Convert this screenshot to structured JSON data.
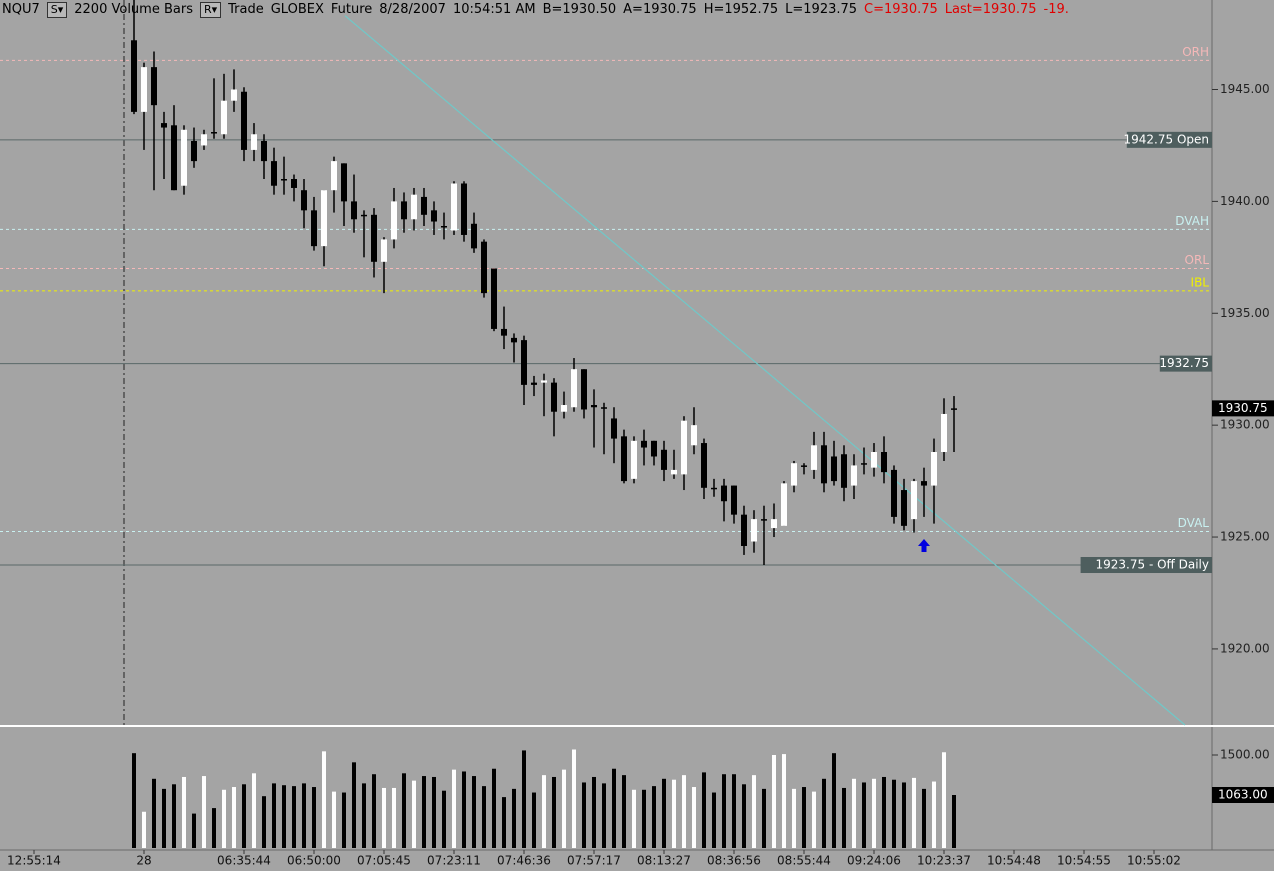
{
  "header": {
    "items": [
      {
        "text": "NQU7",
        "color": "#000000"
      },
      {
        "text": "S▾",
        "color": "#000000",
        "button": true
      },
      {
        "text": "2200 Volume Bars",
        "color": "#000000"
      },
      {
        "text": "R▾",
        "color": "#000000",
        "button": true
      },
      {
        "text": "Trade",
        "color": "#000000"
      },
      {
        "text": "GLOBEX",
        "color": "#000000"
      },
      {
        "text": "Future",
        "color": "#000000"
      },
      {
        "text": "8/28/2007",
        "color": "#000000"
      },
      {
        "text": "10:54:51 AM",
        "color": "#000000"
      },
      {
        "text": "B=1930.50",
        "color": "#000000"
      },
      {
        "text": "A=1930.75",
        "color": "#000000"
      },
      {
        "text": "H=1952.75",
        "color": "#000000"
      },
      {
        "text": "L=1923.75",
        "color": "#000000"
      },
      {
        "text": "C=1930.75",
        "color": "#e00000"
      },
      {
        "text": "Last=1930.75",
        "color": "#e00000"
      },
      {
        "text": "-19.",
        "color": "#e00000"
      }
    ]
  },
  "chart_data": [
    {
      "type": "candlestick",
      "up_color": "#ffffff",
      "down_color": "#000000",
      "xlim": [
        -13.4,
        107.8
      ],
      "ylim": [
        1916.6,
        1949
      ],
      "yticks": [
        {
          "value": 1920,
          "label": "1920.00"
        },
        {
          "value": 1925,
          "label": "1925.00"
        },
        {
          "value": 1930,
          "label": "1930.00"
        },
        {
          "value": 1935,
          "label": "1935.00"
        },
        {
          "value": 1940,
          "label": "1940.00"
        },
        {
          "value": 1945,
          "label": "1945.00"
        }
      ],
      "xticks": [
        {
          "value": -10,
          "label": "12:55:14"
        },
        {
          "value": 1,
          "label": "28"
        },
        {
          "value": 11,
          "label": "06:35:44"
        },
        {
          "value": 18,
          "label": "06:50:00"
        },
        {
          "value": 25,
          "label": "07:05:45"
        },
        {
          "value": 32,
          "label": "07:23:11"
        },
        {
          "value": 39,
          "label": "07:46:36"
        },
        {
          "value": 46,
          "label": "07:57:17"
        },
        {
          "value": 53,
          "label": "08:13:27"
        },
        {
          "value": 60,
          "label": "08:36:56"
        },
        {
          "value": 67,
          "label": "08:55:44"
        },
        {
          "value": 74,
          "label": "09:24:06"
        },
        {
          "value": 81,
          "label": "10:23:37"
        },
        {
          "value": 88,
          "label": "10:54:48"
        },
        {
          "value": 95,
          "label": "10:54:55"
        },
        {
          "value": 102,
          "label": "10:55:02"
        }
      ],
      "open": [
        1947.2,
        1944,
        1946,
        1943.5,
        1943.4,
        1940.7,
        1942.7,
        1942.5,
        1943.1,
        1943,
        1944.5,
        1944.9,
        1942.3,
        1942.7,
        1941.8,
        1941,
        1941,
        1940.5,
        1939.6,
        1938,
        1940.5,
        1941.7,
        1940,
        1939.4,
        1939.4,
        1937.3,
        1938.3,
        1940,
        1939.2,
        1940.2,
        1939.6,
        1938.9,
        1938.7,
        1940.8,
        1939,
        1938.2,
        1937,
        1934.3,
        1933.9,
        1933.8,
        1931.9,
        1931.9,
        1931.9,
        1930.6,
        1930.8,
        1932.5,
        1930.9,
        1930.8,
        1930.3,
        1929.5,
        1927.6,
        1929.3,
        1929.3,
        1928.9,
        1927.8,
        1927.8,
        1929.1,
        1929.2,
        1927.2,
        1927.3,
        1927.3,
        1926,
        1924.8,
        1925.8,
        1925.4,
        1925.5,
        1927.3,
        1928.2,
        1928,
        1929.1,
        1928.6,
        1928.7,
        1927.3,
        1928.3,
        1928.1,
        1928.8,
        1928,
        1927.1,
        1925.8,
        1927.5,
        1927.3,
        1928.8,
        1930.75
      ],
      "high": [
        1949,
        1946.2,
        1946.7,
        1944,
        1944.3,
        1943.4,
        1943.3,
        1943.2,
        1945.5,
        1945.7,
        1945.9,
        1945.1,
        1943.5,
        1943,
        1942.4,
        1942,
        1941.2,
        1941,
        1940.2,
        1940.5,
        1942,
        1941.7,
        1941.2,
        1939.6,
        1939.7,
        1938.4,
        1940.6,
        1940.4,
        1940.6,
        1940.6,
        1940,
        1939.5,
        1940.9,
        1940.9,
        1939.5,
        1938.3,
        1937,
        1935.3,
        1934.1,
        1934,
        1932.2,
        1932.3,
        1932.1,
        1931.5,
        1933,
        1932.5,
        1931.6,
        1931,
        1930.8,
        1929.8,
        1929.5,
        1929.8,
        1929.3,
        1929.3,
        1928.9,
        1930.4,
        1930.8,
        1929.4,
        1927.6,
        1927.6,
        1927.3,
        1926.4,
        1926.2,
        1926.4,
        1926.5,
        1927.5,
        1928.4,
        1928.3,
        1929.7,
        1929.7,
        1929.3,
        1929.1,
        1928.7,
        1929,
        1929.2,
        1929.5,
        1928.2,
        1927.6,
        1927.6,
        1928.1,
        1929.4,
        1931.2,
        1931.3
      ],
      "low": [
        1943.9,
        1942.3,
        1940.5,
        1941,
        1940.5,
        1940.3,
        1941.5,
        1942.3,
        1942.8,
        1942.8,
        1944,
        1941.8,
        1941.8,
        1941,
        1940.3,
        1940.3,
        1940,
        1938.8,
        1937.8,
        1937.1,
        1939.5,
        1938.9,
        1938.6,
        1937.5,
        1936.6,
        1935.9,
        1937.9,
        1938.6,
        1938.7,
        1938.9,
        1938.5,
        1938.3,
        1938.5,
        1938.2,
        1937.7,
        1935.7,
        1934.2,
        1933.4,
        1932.8,
        1930.9,
        1931.3,
        1930.4,
        1929.5,
        1930.3,
        1930.6,
        1930.3,
        1929,
        1928.7,
        1928.3,
        1927.4,
        1927.4,
        1928.2,
        1928.2,
        1927.5,
        1927.6,
        1927.1,
        1928.7,
        1926.7,
        1926.8,
        1925.7,
        1925.6,
        1924.2,
        1924.3,
        1923.75,
        1925,
        1925.5,
        1927,
        1927.8,
        1927.6,
        1927,
        1927.3,
        1926.6,
        1926.7,
        1927.8,
        1927.7,
        1927.4,
        1925.6,
        1925.3,
        1925.2,
        1925.9,
        1925.6,
        1928.4,
        1928.8
      ],
      "close": [
        1944,
        1946,
        1944.3,
        1943.3,
        1940.5,
        1943.2,
        1941.8,
        1943,
        1943.1,
        1944.5,
        1945,
        1942.3,
        1943,
        1941.8,
        1940.7,
        1941,
        1940.6,
        1939.6,
        1938,
        1940.5,
        1941.8,
        1940,
        1939.2,
        1939.4,
        1937.3,
        1938.3,
        1940,
        1939.2,
        1940.3,
        1939.4,
        1939.1,
        1938.9,
        1940.8,
        1938.5,
        1937.9,
        1935.9,
        1934.3,
        1934,
        1933.7,
        1931.8,
        1931.8,
        1932,
        1930.6,
        1930.9,
        1932.5,
        1930.7,
        1930.8,
        1930.8,
        1929.4,
        1927.5,
        1929.3,
        1929,
        1928.6,
        1928,
        1928,
        1930.2,
        1930,
        1927.2,
        1927.2,
        1926.6,
        1926,
        1924.6,
        1925.8,
        1925.8,
        1925.8,
        1927.4,
        1928.3,
        1928.2,
        1929.1,
        1927.4,
        1927.5,
        1927.2,
        1928.2,
        1928.3,
        1928.8,
        1927.9,
        1925.9,
        1925.5,
        1927.5,
        1927.3,
        1928.8,
        1930.5,
        1930.75
      ],
      "levels": [
        {
          "label": "ORH",
          "value": 1946.3,
          "color": "#f4b8b8",
          "style": "dashed"
        },
        {
          "label": "1942.75 Open",
          "value": 1942.75,
          "color": "#4e5e5e",
          "style": "solid",
          "boxed": true
        },
        {
          "label": "DVAH",
          "value": 1938.75,
          "color": "#c8f0f0",
          "style": "dashed"
        },
        {
          "label": "ORL",
          "value": 1937,
          "color": "#f4b8b8",
          "style": "dashed"
        },
        {
          "label": "IBL",
          "value": 1936,
          "color": "#f0f000",
          "style": "dashed"
        },
        {
          "label": "1932.75",
          "value": 1932.75,
          "color": "#4e5e5e",
          "style": "solid",
          "boxed": true
        },
        {
          "label": "DVAL",
          "value": 1925.25,
          "color": "#c8f0f0",
          "style": "dashed"
        },
        {
          "label": "1923.75 - Off Daily",
          "value": 1923.75,
          "color": "#4e5e5e",
          "style": "solid",
          "boxed": true
        }
      ],
      "trendline": {
        "x": [
          21.1,
          105.1
        ],
        "values": [
          1948.3,
          1916.6
        ],
        "color": "#70c8c8"
      },
      "signal": {
        "x": 79,
        "value": 1924.6,
        "color": "#0000e0"
      },
      "last_price": {
        "value": 1930.75,
        "label": "1930.75"
      }
    },
    {
      "type": "volume",
      "ylim": [
        484,
        1795
      ],
      "yticks": [
        {
          "value": 1500,
          "label": "1500.00"
        }
      ],
      "values": [
        1520,
        880,
        1240,
        1130,
        1180,
        1260,
        860,
        1270,
        920,
        1120,
        1150,
        1180,
        1300,
        1050,
        1190,
        1170,
        1160,
        1190,
        1150,
        1540,
        1100,
        1090,
        1420,
        1190,
        1290,
        1140,
        1140,
        1300,
        1220,
        1270,
        1260,
        1110,
        1340,
        1320,
        1270,
        1160,
        1350,
        1040,
        1130,
        1550,
        1090,
        1280,
        1260,
        1340,
        1560,
        1200,
        1260,
        1190,
        1350,
        1280,
        1120,
        1120,
        1160,
        1240,
        1230,
        1280,
        1150,
        1310,
        1090,
        1290,
        1290,
        1180,
        1280,
        1130,
        1500,
        1510,
        1130,
        1150,
        1100,
        1240,
        1520,
        1140,
        1240,
        1200,
        1240,
        1260,
        1230,
        1200,
        1250,
        1130,
        1210,
        1530,
        1063
      ],
      "last_value": {
        "value": 1063,
        "label": "1063.00"
      }
    }
  ]
}
